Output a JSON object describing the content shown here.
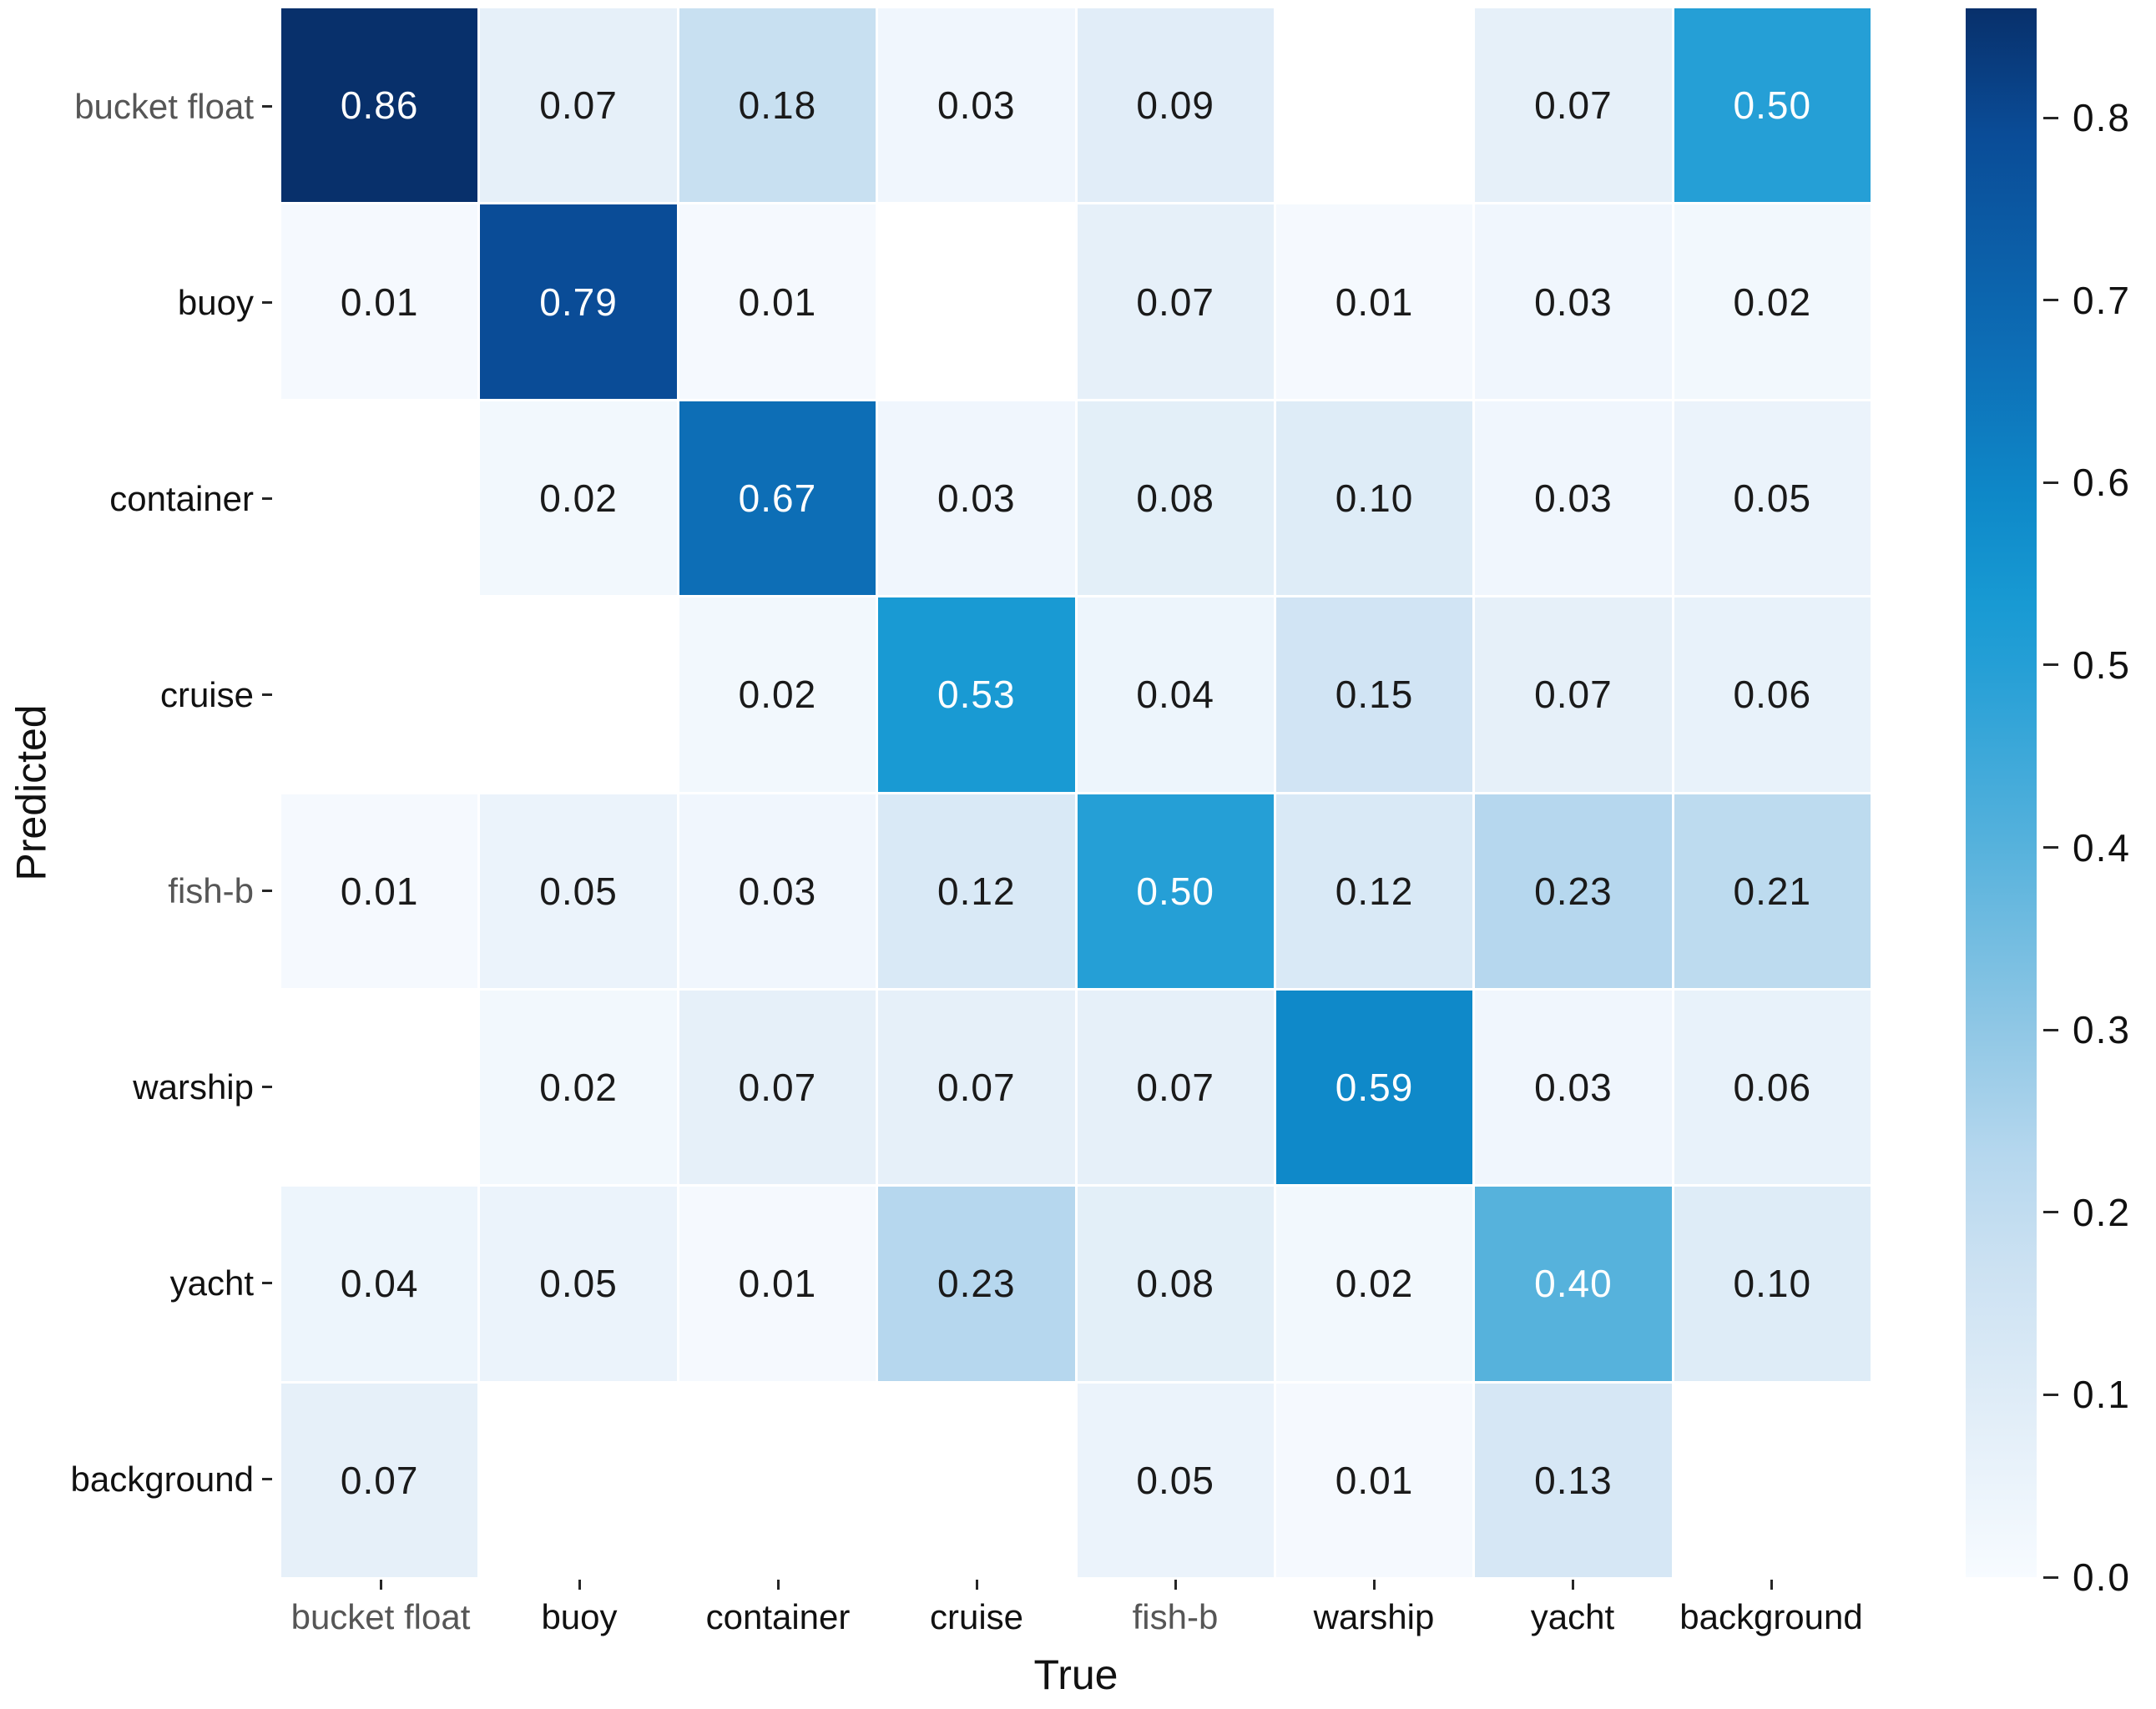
{
  "figure": {
    "background": "#ffffff",
    "label_color": "#111111",
    "muted_label_color": "#565656",
    "tick_color": "#262626"
  },
  "chart_data": {
    "type": "heatmap",
    "title": "",
    "xlabel": "True",
    "ylabel": "Predicted",
    "x_categories": [
      "bucket float",
      "buoy",
      "container",
      "cruise",
      "fish-b",
      "warship",
      "yacht",
      "background"
    ],
    "y_categories": [
      "bucket float",
      "buoy",
      "container",
      "cruise",
      "fish-b",
      "warship",
      "yacht",
      "background"
    ],
    "muted_category_labels": [
      "bucket float",
      "fish-b"
    ],
    "matrix": [
      [
        0.86,
        0.07,
        0.18,
        0.03,
        0.09,
        null,
        0.07,
        0.5
      ],
      [
        0.01,
        0.79,
        0.01,
        null,
        0.07,
        0.01,
        0.03,
        0.02
      ],
      [
        null,
        0.02,
        0.67,
        0.03,
        0.08,
        0.1,
        0.03,
        0.05
      ],
      [
        null,
        null,
        0.02,
        0.53,
        0.04,
        0.15,
        0.07,
        0.06
      ],
      [
        0.01,
        0.05,
        0.03,
        0.12,
        0.5,
        0.12,
        0.23,
        0.21
      ],
      [
        null,
        0.02,
        0.07,
        0.07,
        0.07,
        0.59,
        0.03,
        0.06
      ],
      [
        0.04,
        0.05,
        0.01,
        0.23,
        0.08,
        0.02,
        0.4,
        0.1
      ],
      [
        0.07,
        null,
        null,
        null,
        0.05,
        0.01,
        0.13,
        null
      ]
    ],
    "value_decimals": 2,
    "vmin": 0,
    "vmax": 0.86,
    "grid": false,
    "legend_position": "right-colorbar",
    "colorbar_ticks": [
      "0.8",
      "0.7",
      "0.6",
      "0.5",
      "0.4",
      "0.3",
      "0.2",
      "0.1",
      "0.0"
    ],
    "colormap": {
      "name": "blues-cyan",
      "stops": [
        [
          0.0,
          "#f7fbff"
        ],
        [
          0.1,
          "#e2eef8"
        ],
        [
          0.2,
          "#cbe1f2"
        ],
        [
          0.27,
          "#b5d7ee"
        ],
        [
          0.35,
          "#8fc7e5"
        ],
        [
          0.47,
          "#54b1dc"
        ],
        [
          0.58,
          "#259fd6"
        ],
        [
          0.62,
          "#189ad3"
        ],
        [
          0.69,
          "#0e88c8"
        ],
        [
          0.78,
          "#0d6eb6"
        ],
        [
          0.92,
          "#0a4c97"
        ],
        [
          1.0,
          "#08306b"
        ]
      ],
      "null_color": "#ffffff",
      "light_text_threshold": 0.35,
      "light_text_color": "#ffffff",
      "dark_text_color": "#1a1a1a"
    }
  }
}
